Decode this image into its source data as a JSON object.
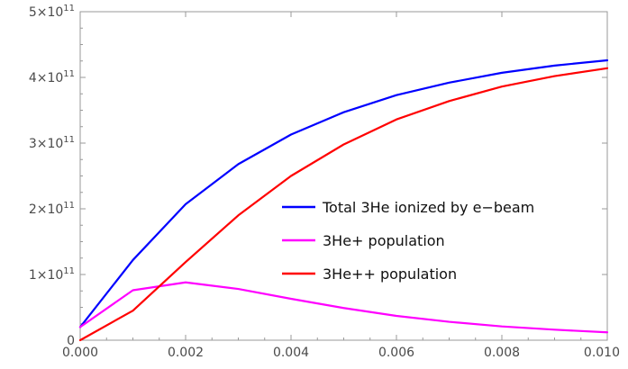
{
  "chart_data": {
    "type": "line",
    "title": "",
    "xlabel": "",
    "ylabel": "",
    "xlim": [
      0,
      0.01
    ],
    "ylim": [
      0,
      500000000000.0
    ],
    "grid": false,
    "legend_position": "right",
    "x_ticks": [
      {
        "value": 0.0,
        "label": "0.000"
      },
      {
        "value": 0.002,
        "label": "0.002"
      },
      {
        "value": 0.004,
        "label": "0.004"
      },
      {
        "value": 0.006,
        "label": "0.006"
      },
      {
        "value": 0.008,
        "label": "0.008"
      },
      {
        "value": 0.01,
        "label": "0.010"
      }
    ],
    "y_ticks": [
      {
        "value": 0,
        "mantissa": "0",
        "base": "",
        "exp": ""
      },
      {
        "value": 100000000000.0,
        "mantissa": "1",
        "base": "10",
        "exp": "11"
      },
      {
        "value": 200000000000.0,
        "mantissa": "2",
        "base": "10",
        "exp": "11"
      },
      {
        "value": 300000000000.0,
        "mantissa": "3",
        "base": "10",
        "exp": "11"
      },
      {
        "value": 400000000000.0,
        "mantissa": "4",
        "base": "10",
        "exp": "11"
      },
      {
        "value": 500000000000.0,
        "mantissa": "5",
        "base": "10",
        "exp": "11"
      }
    ],
    "x": [
      0.0,
      0.001,
      0.002,
      0.003,
      0.004,
      0.005,
      0.006,
      0.007,
      0.008,
      0.009,
      0.01
    ],
    "series": [
      {
        "name": "Total 3He ionized by e−beam",
        "color": "#0000ff",
        "values": [
          20000000000.0,
          122000000000.0,
          207000000000.0,
          268000000000.0,
          313000000000.0,
          347000000000.0,
          373000000000.0,
          392000000000.0,
          407000000000.0,
          418000000000.0,
          426000000000.0
        ]
      },
      {
        "name": "3He+ population",
        "color": "#ff00ff",
        "values": [
          20000000000.0,
          76000000000.0,
          88000000000.0,
          78000000000.0,
          63000000000.0,
          49000000000.0,
          37000000000.0,
          28000000000.0,
          21000000000.0,
          16000000000.0,
          12000000000.0
        ]
      },
      {
        "name": "3He++ population",
        "color": "#ff0000",
        "values": [
          0,
          45000000000.0,
          119000000000.0,
          190000000000.0,
          250000000000.0,
          298000000000.0,
          336000000000.0,
          364000000000.0,
          386000000000.0,
          402000000000.0,
          414000000000.0
        ]
      }
    ]
  }
}
